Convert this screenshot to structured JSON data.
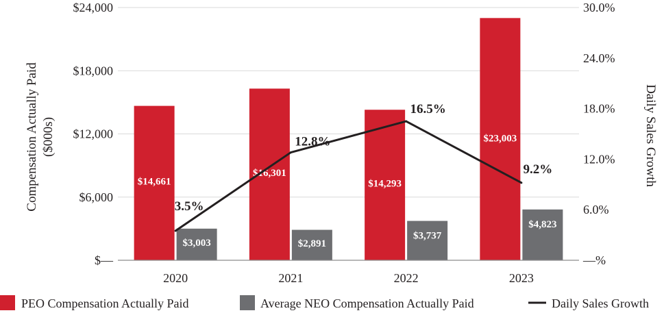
{
  "chart_data": {
    "type": "bar",
    "categories": [
      "2020",
      "2021",
      "2022",
      "2023"
    ],
    "series": [
      {
        "name": "PEO Compensation Actually Paid",
        "kind": "bar",
        "axis": "left",
        "color": "#d0202e",
        "values": [
          14661,
          16301,
          14293,
          23003
        ],
        "labels": [
          "$14,661",
          "$16,301",
          "$14,293",
          "$23,003"
        ]
      },
      {
        "name": "Average NEO Compensation Actually Paid",
        "kind": "bar",
        "axis": "left",
        "color": "#6d6e71",
        "values": [
          3003,
          2891,
          3737,
          4823
        ],
        "labels": [
          "$3,003",
          "$2,891",
          "$3,737",
          "$4,823"
        ]
      },
      {
        "name": "Daily Sales Growth",
        "kind": "line",
        "axis": "right",
        "color": "#231f20",
        "values": [
          3.5,
          12.8,
          16.5,
          9.2
        ],
        "labels": [
          "3.5%",
          "12.8%",
          "16.5%",
          "9.2%"
        ]
      }
    ],
    "ylabel": "Compensation Actually Paid",
    "ylabel_line2": "($000s)",
    "y2label": "Daily Sales Growth",
    "ylim": [
      0,
      24000
    ],
    "y2lim": [
      0,
      30
    ],
    "yticks": [
      0,
      6000,
      12000,
      18000,
      24000
    ],
    "ytick_labels": [
      "$—",
      "$6,000",
      "$12,000",
      "$18,000",
      "$24,000"
    ],
    "y2ticks": [
      0,
      6,
      12,
      18,
      24,
      30
    ],
    "y2tick_labels": [
      "—%",
      "6.0%",
      "12.0%",
      "18.0%",
      "24.0%",
      "30.0%"
    ],
    "grid": true,
    "legend_position": "bottom"
  }
}
